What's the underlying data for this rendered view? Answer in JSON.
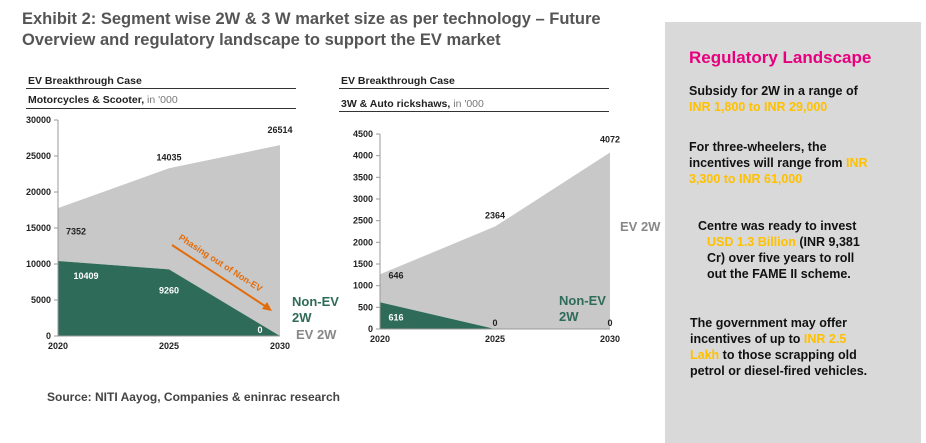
{
  "exhibit_title_line1": "Exhibit 2: Segment wise 2W & 3 W market size as per technology – Future",
  "exhibit_title_line2": "Overview and regulatory landscape to support the EV market",
  "source": "Source: NITI Aayog, Companies & eninrac research",
  "colors": {
    "ev": "#c8c8c8",
    "nonev": "#2e6b59",
    "arrow": "#e36c0a",
    "accent": "#e6007e",
    "highlight": "#ffc000"
  },
  "chart_data": [
    {
      "type": "area",
      "case_label": "EV Breakthrough Case",
      "title": "Motorcycles & Scooter,",
      "unit": " in '000",
      "categories": [
        "2020",
        "2025",
        "2030"
      ],
      "ylim": [
        0,
        30000
      ],
      "yticks": [
        "0",
        "5000",
        "10000",
        "15000",
        "20000",
        "25000",
        "30000"
      ],
      "series": [
        {
          "name": "Non-EV 2W",
          "label_line1": "Non-EV",
          "label_line2": "2W",
          "values": [
            10409,
            9260,
            0
          ],
          "labels": [
            "10409",
            "9260",
            "0"
          ]
        },
        {
          "name": "EV 2W",
          "label_line1": "EV 2W",
          "values": [
            7352,
            14035,
            26514
          ],
          "labels": [
            "7352",
            "14035",
            "26514"
          ]
        }
      ],
      "annotation": "Phasing out of Non-EV"
    },
    {
      "type": "area",
      "case_label": "EV Breakthrough Case",
      "title": "3W & Auto rickshaws,",
      "unit": " in '000",
      "categories": [
        "2020",
        "2025",
        "2030"
      ],
      "ylim": [
        0,
        4500
      ],
      "yticks": [
        "0",
        "500",
        "1000",
        "1500",
        "2000",
        "2500",
        "3000",
        "3500",
        "4000",
        "4500"
      ],
      "series": [
        {
          "name": "Non-EV 2W",
          "label_line1": "Non-EV",
          "label_line2": "2W",
          "values": [
            616,
            0,
            0
          ],
          "labels": [
            "616",
            "0",
            "0"
          ]
        },
        {
          "name": "EV 2W",
          "label_line1": "EV 2W",
          "values": [
            646,
            2364,
            4072
          ],
          "labels": [
            "646",
            "2364",
            "4072"
          ]
        }
      ]
    }
  ],
  "regulatory": {
    "title": "Regulatory Landscape",
    "p1_a": "Subsidy for 2W in a range of",
    "p1_hl": "INR 1,800 to INR 29,000",
    "p2_a": "For three-wheelers, the",
    "p2_b": "incentives will range from",
    "p2_hl1": "INR",
    "p2_hl2": "3,300 to INR 61,000",
    "p3_a": "Centre was ready to invest",
    "p3_hl": "USD 1.3 Billion",
    "p3_b": "(INR 9,381",
    "p3_c": "Cr) over five years to roll",
    "p3_d": "out the FAME II scheme.",
    "p4_a": "The government may offer",
    "p4_b": "incentives of up to",
    "p4_hl1": "INR 2.5",
    "p4_hl2": "Lakh",
    "p4_c": "to those scrapping old",
    "p4_d": "petrol or diesel-fired vehicles."
  }
}
